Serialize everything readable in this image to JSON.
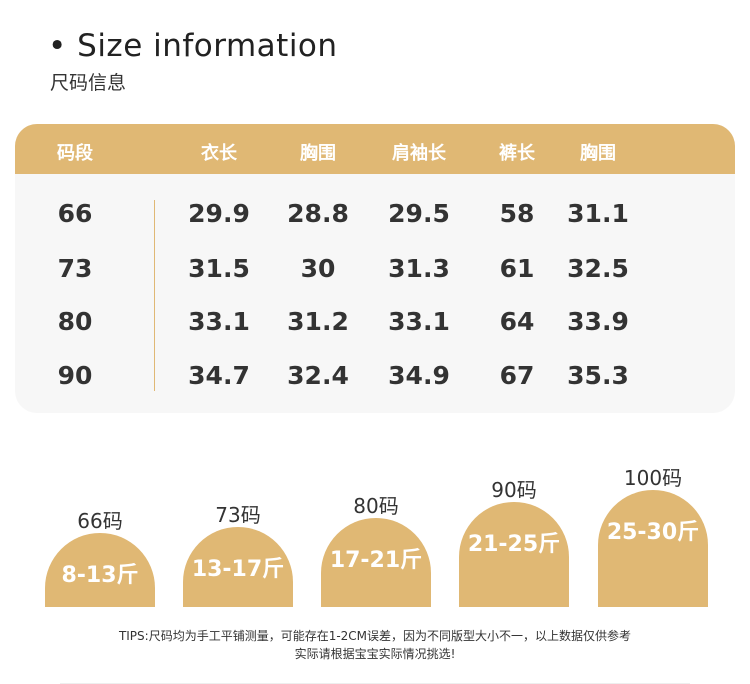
{
  "title": "• Size information",
  "subtitle": "尺码信息",
  "table": {
    "headers": [
      "码段",
      "衣长",
      "胸围",
      "肩袖长",
      "裤长",
      "胸围"
    ],
    "rows": [
      [
        "66",
        "29.9",
        "28.8",
        "29.5",
        "58",
        "31.1"
      ],
      [
        "73",
        "31.5",
        "30",
        "31.3",
        "61",
        "32.5"
      ],
      [
        "80",
        "33.1",
        "31.2",
        "33.1",
        "64",
        "33.9"
      ],
      [
        "90",
        "34.7",
        "32.4",
        "34.9",
        "67",
        "35.3"
      ]
    ]
  },
  "weights": [
    {
      "size": "66码",
      "range": "8-13斤"
    },
    {
      "size": "73码",
      "range": "13-17斤"
    },
    {
      "size": "80码",
      "range": "17-21斤"
    },
    {
      "size": "90码",
      "range": "21-25斤"
    },
    {
      "size": "100码",
      "range": "25-30斤"
    }
  ],
  "tips": {
    "line1": "TIPS:尺码均为手工平铺测量，可能存在1-2CM误差，因为不同版型大小不一，以上数据仅供参考",
    "line2": "实际请根据宝宝实际情况挑选!"
  },
  "colors": {
    "accent": "#e0b874",
    "card": "#f7f7f7"
  }
}
